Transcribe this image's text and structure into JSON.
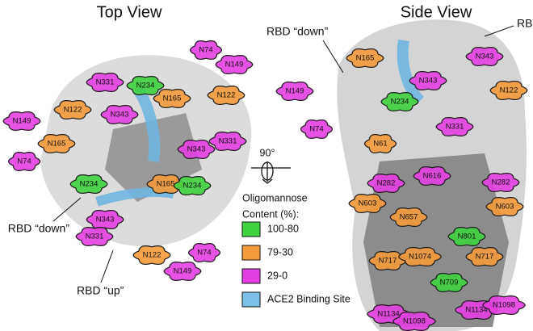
{
  "top_view": {
    "title": "Top View",
    "annotations": [
      "RBD “down”",
      "RBD “up”"
    ],
    "glycans": [
      {
        "label": "N74",
        "color": "#e33fe0"
      },
      {
        "label": "N149",
        "color": "#e33fe0"
      },
      {
        "label": "N331",
        "color": "#e33fe0"
      },
      {
        "label": "N234",
        "color": "#3fd13f"
      },
      {
        "label": "N165",
        "color": "#f39a3c"
      },
      {
        "label": "N122",
        "color": "#f39a3c"
      },
      {
        "label": "N122",
        "color": "#f39a3c"
      },
      {
        "label": "N343",
        "color": "#e33fe0"
      },
      {
        "label": "N149",
        "color": "#e33fe0"
      },
      {
        "label": "N165",
        "color": "#f39a3c"
      },
      {
        "label": "N343",
        "color": "#e33fe0"
      },
      {
        "label": "N331",
        "color": "#e33fe0"
      },
      {
        "label": "N74",
        "color": "#e33fe0"
      },
      {
        "label": "N234",
        "color": "#3fd13f"
      },
      {
        "label": "N165",
        "color": "#f39a3c"
      },
      {
        "label": "N234",
        "color": "#3fd13f"
      },
      {
        "label": "N343",
        "color": "#e33fe0"
      },
      {
        "label": "N331",
        "color": "#e33fe0"
      },
      {
        "label": "N122",
        "color": "#f39a3c"
      },
      {
        "label": "N74",
        "color": "#e33fe0"
      },
      {
        "label": "N149",
        "color": "#e33fe0"
      }
    ]
  },
  "center": {
    "rotation": "90°",
    "legend": {
      "title_lines": [
        "Oligomannose",
        "Content (%):"
      ],
      "items": [
        {
          "label": "100-80",
          "color": "#3fd13f"
        },
        {
          "label": "79-30",
          "color": "#f39a3c"
        },
        {
          "label": "29-0",
          "color": "#e33fe0"
        },
        {
          "label": "ACE2 Binding Site",
          "color": "#79bfe6"
        }
      ]
    }
  },
  "side_view": {
    "title": "Side View",
    "annotations": [
      "RBD “down”",
      "RB"
    ],
    "glycans": [
      {
        "label": "N165",
        "color": "#f39a3c"
      },
      {
        "label": "N343",
        "color": "#e33fe0"
      },
      {
        "label": "N343",
        "color": "#e33fe0"
      },
      {
        "label": "N122",
        "color": "#f39a3c"
      },
      {
        "label": "N149",
        "color": "#e33fe0"
      },
      {
        "label": "N234",
        "color": "#3fd13f"
      },
      {
        "label": "N331",
        "color": "#e33fe0"
      },
      {
        "label": "N74",
        "color": "#e33fe0"
      },
      {
        "label": "N61",
        "color": "#f39a3c"
      },
      {
        "label": "N616",
        "color": "#e33fe0"
      },
      {
        "label": "N282",
        "color": "#e33fe0"
      },
      {
        "label": "N282",
        "color": "#e33fe0"
      },
      {
        "label": "N603",
        "color": "#f39a3c"
      },
      {
        "label": "N657",
        "color": "#f39a3c"
      },
      {
        "label": "N603",
        "color": "#f39a3c"
      },
      {
        "label": "N801",
        "color": "#3fd13f"
      },
      {
        "label": "N717",
        "color": "#f39a3c"
      },
      {
        "label": "N1074",
        "color": "#f39a3c"
      },
      {
        "label": "N717",
        "color": "#f39a3c"
      },
      {
        "label": "N709",
        "color": "#3fd13f"
      },
      {
        "label": "N1134",
        "color": "#e33fe0"
      },
      {
        "label": "N1098",
        "color": "#e33fe0"
      },
      {
        "label": "N1134",
        "color": "#e33fe0"
      },
      {
        "label": "N1098",
        "color": "#e33fe0"
      }
    ]
  }
}
